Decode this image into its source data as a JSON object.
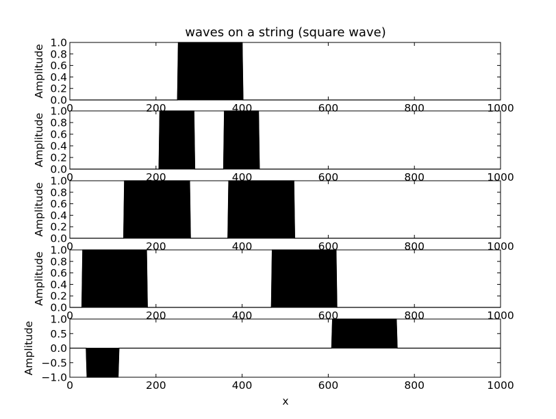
{
  "title": "waves on a string (square wave)",
  "xlabel": "x",
  "colors": {
    "wave": "#000000",
    "frame": "#000000",
    "background": "#ffffff"
  },
  "chart_data": [
    {
      "type": "area",
      "title": "waves on a string (square wave)",
      "xlabel": "",
      "ylabel": "Amplitude",
      "xlim": [
        0,
        1000
      ],
      "ylim": [
        0,
        1
      ],
      "xticks": [
        0,
        200,
        400,
        600,
        800,
        1000
      ],
      "xtick_labels": [
        "0",
        "200",
        "400",
        "600",
        "800",
        "1000"
      ],
      "yticks": [
        0,
        0.2,
        0.4,
        0.6,
        0.8,
        1.0
      ],
      "ytick_labels": [
        "0.0",
        "0.2",
        "0.4",
        "0.6",
        "0.8",
        "1.0"
      ],
      "grid": false,
      "x": [
        0,
        250,
        252,
        400,
        402,
        1000
      ],
      "y": [
        0,
        0,
        1,
        1,
        0,
        0
      ]
    },
    {
      "type": "area",
      "ylabel": "Amplitude",
      "xlim": [
        0,
        1000
      ],
      "ylim": [
        0,
        1
      ],
      "xticks": [
        0,
        200,
        400,
        600,
        800,
        1000
      ],
      "xtick_labels": [
        "0",
        "200",
        "400",
        "600",
        "800",
        "1000"
      ],
      "yticks": [
        0,
        0.2,
        0.4,
        0.6,
        0.8,
        1.0
      ],
      "ytick_labels": [
        "0.0",
        "0.2",
        "0.4",
        "0.6",
        "0.8",
        "1.0"
      ],
      "grid": false,
      "x": [
        0,
        207,
        209,
        288,
        290,
        357,
        359,
        438,
        440,
        1000
      ],
      "y": [
        0,
        0,
        1,
        1,
        0,
        0,
        1,
        1,
        0,
        0
      ]
    },
    {
      "type": "area",
      "ylabel": "Amplitude",
      "xlim": [
        0,
        1000
      ],
      "ylim": [
        0,
        1
      ],
      "xticks": [
        0,
        200,
        400,
        600,
        800,
        1000
      ],
      "xtick_labels": [
        "0",
        "200",
        "400",
        "600",
        "800",
        "1000"
      ],
      "yticks": [
        0,
        0.2,
        0.4,
        0.6,
        0.8,
        1.0
      ],
      "ytick_labels": [
        "0.0",
        "0.2",
        "0.4",
        "0.6",
        "0.8",
        "1.0"
      ],
      "grid": false,
      "x": [
        0,
        125,
        127,
        278,
        280,
        367,
        369,
        520,
        522,
        1000
      ],
      "y": [
        0,
        0,
        1,
        1,
        0,
        0,
        1,
        1,
        0,
        0
      ]
    },
    {
      "type": "area",
      "ylabel": "Amplitude",
      "xlim": [
        0,
        1000
      ],
      "ylim": [
        0,
        1
      ],
      "xticks": [
        0,
        200,
        400,
        600,
        800,
        1000
      ],
      "xtick_labels": [
        "0",
        "200",
        "400",
        "600",
        "800",
        "1000"
      ],
      "yticks": [
        0,
        0.2,
        0.4,
        0.6,
        0.8,
        1.0
      ],
      "ytick_labels": [
        "0.0",
        "0.2",
        "0.4",
        "0.6",
        "0.8",
        "1.0"
      ],
      "grid": false,
      "x": [
        0,
        28,
        30,
        178,
        180,
        468,
        470,
        618,
        620,
        1000
      ],
      "y": [
        0,
        0,
        1,
        1,
        0,
        0,
        1,
        1,
        0,
        0
      ]
    },
    {
      "type": "area",
      "ylabel": "Amplitude",
      "xlabel": "x",
      "xlim": [
        0,
        1000
      ],
      "ylim": [
        -1,
        1
      ],
      "xticks": [
        0,
        200,
        400,
        600,
        800,
        1000
      ],
      "xtick_labels": [
        "0",
        "200",
        "400",
        "600",
        "800",
        "1000"
      ],
      "yticks": [
        -1.0,
        -0.5,
        0.0,
        0.5,
        1.0
      ],
      "ytick_labels": [
        "−1.0",
        "−0.5",
        "0.0",
        "0.5",
        "1.0"
      ],
      "grid": false,
      "x": [
        0,
        38,
        40,
        112,
        114,
        608,
        610,
        758,
        760,
        1000
      ],
      "y": [
        0,
        0,
        -1,
        -1,
        0,
        0,
        1,
        1,
        0,
        0
      ]
    }
  ]
}
